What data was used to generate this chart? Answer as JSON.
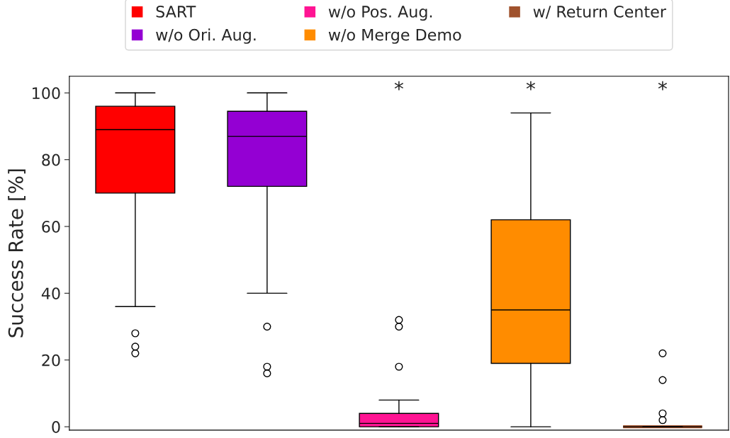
{
  "chart_data": {
    "type": "box",
    "ylabel": "Success Rate [%]",
    "categories": [
      null
    ],
    "ylim": [
      -1,
      105
    ],
    "yticks": [
      0,
      20,
      40,
      60,
      80,
      100
    ],
    "grid": false,
    "legend": "top",
    "marker": "circle",
    "series": [
      {
        "name": "SART",
        "color": "#ff0000",
        "boxes": [
          {
            "low": 36,
            "q1": 70,
            "median": 89,
            "q3": 96,
            "high": 100,
            "outliers": [
              28,
              24,
              22
            ]
          }
        ]
      },
      {
        "name": "w/o Ori. Aug.",
        "color": "#9400d3",
        "boxes": [
          {
            "low": 40,
            "q1": 72,
            "median": 87,
            "q3": 94.5,
            "high": 100,
            "outliers": [
              30,
              18,
              16
            ]
          }
        ]
      },
      {
        "name": "w/o Pos. Aug.",
        "color": "#ff1493",
        "boxes": [
          {
            "low": 0,
            "q1": 0,
            "median": 1,
            "q3": 4,
            "high": 8,
            "outliers": [
              32,
              30,
              18
            ]
          }
        ]
      },
      {
        "name": "w/o Merge Demo",
        "color": "#ff8c00",
        "boxes": [
          {
            "low": 0,
            "q1": 19,
            "median": 35,
            "q3": 62,
            "high": 94
          }
        ]
      },
      {
        "name": "w/ Return Center",
        "color": "#a0522d",
        "boxes": [
          {
            "low": 0,
            "q1": 0,
            "median": 0,
            "q3": 0,
            "high": 0,
            "outliers": [
              22,
              14,
              4,
              2
            ]
          }
        ]
      }
    ],
    "annotations": [
      "*",
      "*",
      "*"
    ]
  }
}
